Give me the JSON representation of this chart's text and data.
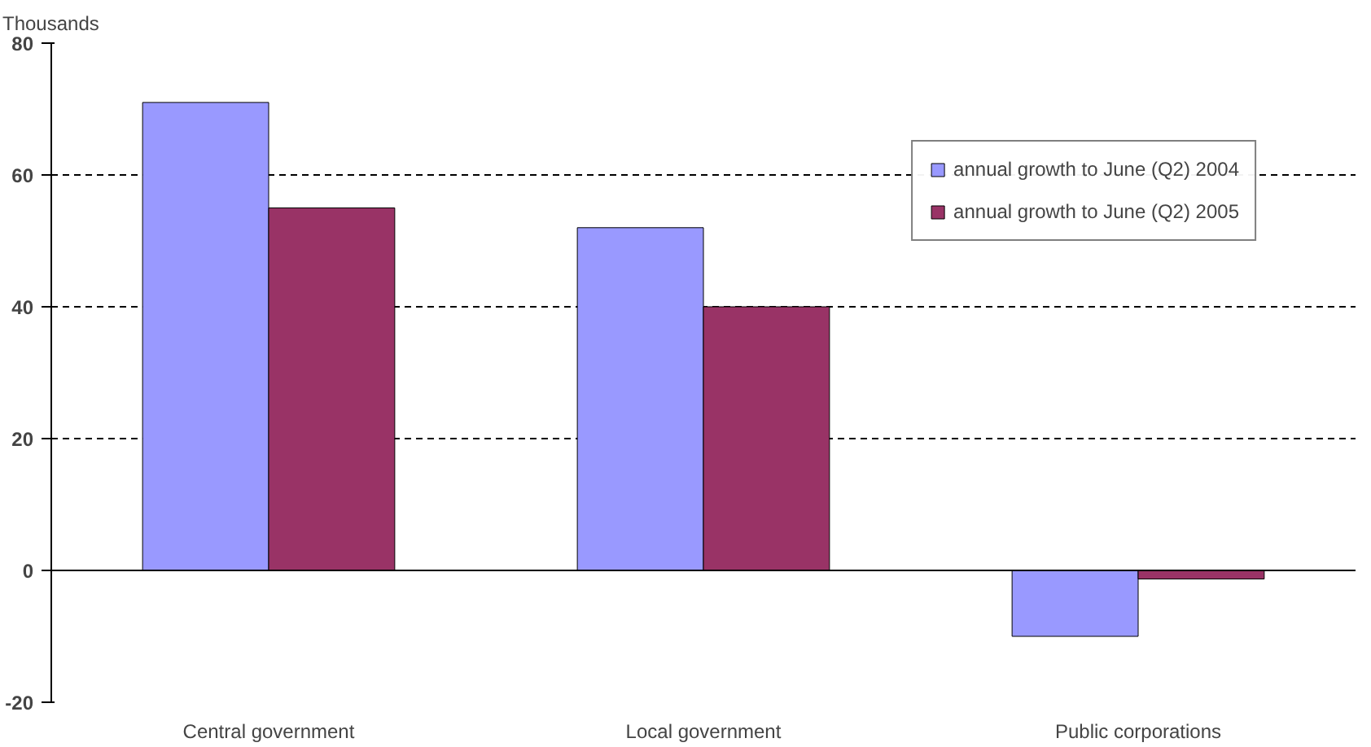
{
  "chart_data": {
    "type": "bar",
    "ylabel": "Thousands",
    "categories": [
      "Central government",
      "Local government",
      "Public corporations"
    ],
    "series": [
      {
        "name": "annual growth to June (Q2) 2004",
        "color": "#9999ff",
        "values": [
          71,
          52,
          -10
        ]
      },
      {
        "name": "annual growth to June (Q2) 2005",
        "color": "#993366",
        "values": [
          55,
          40,
          -1.3
        ]
      }
    ],
    "ylim": [
      -20,
      80
    ],
    "yticks": [
      -20,
      0,
      20,
      40,
      60,
      80
    ],
    "grid": "y",
    "legend": "top right"
  }
}
